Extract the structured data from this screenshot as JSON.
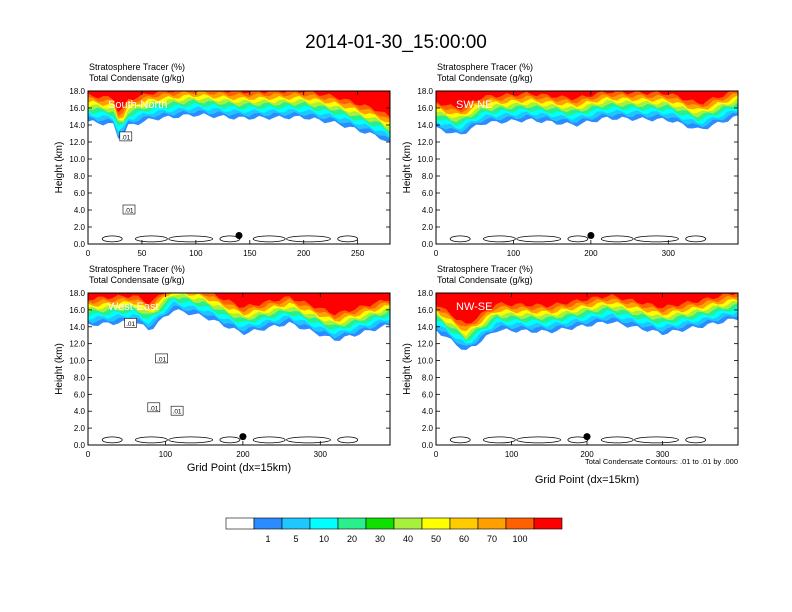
{
  "title": "2014-01-30_15:00:00",
  "panel_header": {
    "line1": "Stratosphere Tracer   (%)",
    "line2": "Total Condensate   (g/kg)"
  },
  "contour_note": "Total Condensate Contours: .01 to .01 by .000",
  "colorbar": {
    "colors": [
      "#ffffff",
      "#2a8cff",
      "#1ec8ff",
      "#00ffff",
      "#28f08c",
      "#10e000",
      "#a8f03c",
      "#ffff00",
      "#ffcc00",
      "#ffa000",
      "#ff6000",
      "#ff0000"
    ],
    "labels": [
      "1",
      "5",
      "10",
      "20",
      "30",
      "40",
      "50",
      "60",
      "70",
      "100"
    ]
  },
  "chart_data": [
    {
      "type": "heatmap",
      "label": "South-North",
      "xlabel": "",
      "ylabel": "Height (km)",
      "xlim": [
        0,
        280
      ],
      "ylim": [
        0,
        18
      ],
      "xticks": [
        0,
        50,
        100,
        150,
        200,
        250
      ],
      "yticks": [
        "0.0",
        "2.0",
        "4.0",
        "6.0",
        "8.0",
        "10.0",
        "12.0",
        "14.0",
        "16.0",
        "18.0"
      ],
      "marker": {
        "x": 140,
        "y": 1.0
      },
      "contour_labels": [
        {
          "text": ".01",
          "x": 35,
          "y": 12.6
        },
        {
          "text": ".01",
          "x": 38,
          "y": 4.0
        }
      ],
      "tracer_front": [
        [
          0,
          14.8
        ],
        [
          25,
          14.4
        ],
        [
          30,
          12.0
        ],
        [
          35,
          14.2
        ],
        [
          60,
          15.1
        ],
        [
          100,
          15.6
        ],
        [
          140,
          15.2
        ],
        [
          200,
          15.3
        ],
        [
          230,
          14.6
        ],
        [
          270,
          13.0
        ],
        [
          280,
          12.2
        ]
      ]
    },
    {
      "type": "heatmap",
      "label": "SW-NE",
      "xlabel": "",
      "ylabel": "Height (km)",
      "xlim": [
        0,
        390
      ],
      "ylim": [
        0,
        18
      ],
      "xticks": [
        0,
        100,
        200,
        300
      ],
      "yticks": [
        "0.0",
        "2.0",
        "4.0",
        "6.0",
        "8.0",
        "10.0",
        "12.0",
        "14.0",
        "16.0",
        "18.0"
      ],
      "marker": {
        "x": 200,
        "y": 1.0
      },
      "contour_labels": [],
      "tracer_front": [
        [
          0,
          14.0
        ],
        [
          30,
          13.2
        ],
        [
          60,
          14.6
        ],
        [
          120,
          15.0
        ],
        [
          180,
          14.4
        ],
        [
          220,
          15.2
        ],
        [
          300,
          15.0
        ],
        [
          340,
          13.8
        ],
        [
          390,
          15.4
        ]
      ]
    },
    {
      "type": "heatmap",
      "label": "West-East",
      "xlabel": "Grid Point (dx=15km)",
      "ylabel": "Height (km)",
      "xlim": [
        0,
        390
      ],
      "ylim": [
        0,
        18
      ],
      "xticks": [
        0,
        100,
        200,
        300
      ],
      "yticks": [
        "0.0",
        "2.0",
        "4.0",
        "6.0",
        "8.0",
        "10.0",
        "12.0",
        "14.0",
        "16.0",
        "18.0"
      ],
      "marker": {
        "x": 200,
        "y": 1.0
      },
      "contour_labels": [
        {
          "text": ".01",
          "x": 55,
          "y": 14.4
        },
        {
          "text": ".01",
          "x": 95,
          "y": 10.2
        },
        {
          "text": ".01",
          "x": 85,
          "y": 4.4
        },
        {
          "text": ".01",
          "x": 115,
          "y": 4.0
        }
      ],
      "tracer_front": [
        [
          0,
          14.6
        ],
        [
          60,
          15.0
        ],
        [
          80,
          14.0
        ],
        [
          110,
          16.4
        ],
        [
          150,
          15.6
        ],
        [
          200,
          13.6
        ],
        [
          260,
          14.8
        ],
        [
          320,
          12.8
        ],
        [
          390,
          14.6
        ]
      ]
    },
    {
      "type": "heatmap",
      "label": "NW-SE",
      "xlabel": "Grid Point (dx=15km)",
      "ylabel": "Height (km)",
      "xlim": [
        0,
        400
      ],
      "ylim": [
        0,
        18
      ],
      "xticks": [
        0,
        100,
        200,
        300
      ],
      "yticks": [
        "0.0",
        "2.0",
        "4.0",
        "6.0",
        "8.0",
        "10.0",
        "12.0",
        "14.0",
        "16.0",
        "18.0"
      ],
      "marker": {
        "x": 200,
        "y": 1.0
      },
      "contour_labels": [],
      "tracer_front": [
        [
          0,
          14.0
        ],
        [
          40,
          11.5
        ],
        [
          80,
          14.0
        ],
        [
          150,
          13.8
        ],
        [
          230,
          15.0
        ],
        [
          300,
          13.6
        ],
        [
          350,
          14.4
        ],
        [
          400,
          15.4
        ]
      ]
    }
  ]
}
